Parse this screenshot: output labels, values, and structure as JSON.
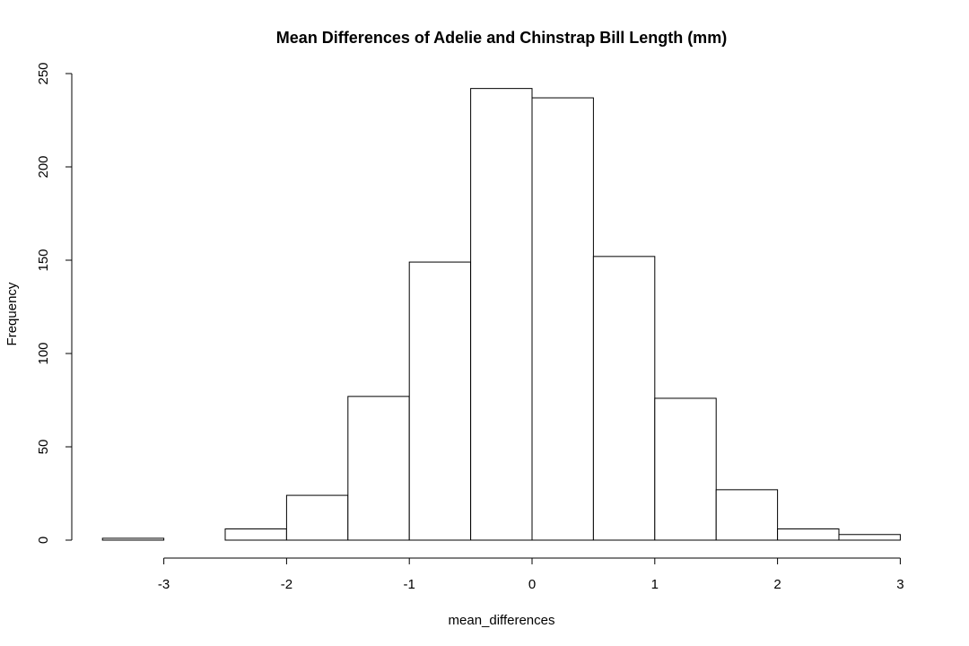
{
  "chart_data": {
    "type": "bar",
    "title": "Mean Differences of Adelie and Chinstrap Bill Length (mm)",
    "xlabel": "mean_differences",
    "ylabel": "Frequency",
    "bin_edges": [
      -3.5,
      -3,
      -2.5,
      -2,
      -1.5,
      -1,
      -0.5,
      0,
      0.5,
      1,
      1.5,
      2,
      2.5,
      3
    ],
    "values": [
      1,
      0,
      6,
      24,
      77,
      149,
      242,
      237,
      152,
      76,
      27,
      6,
      3
    ],
    "xticks": [
      -3,
      -2,
      -1,
      0,
      1,
      2,
      3
    ],
    "yticks": [
      0,
      50,
      100,
      150,
      200,
      250
    ],
    "xlim": [
      -3.5,
      3
    ],
    "ylim": [
      0,
      250
    ],
    "grid": false,
    "colors": {
      "bar_fill": "#ffffff",
      "bar_stroke": "#000000"
    }
  }
}
